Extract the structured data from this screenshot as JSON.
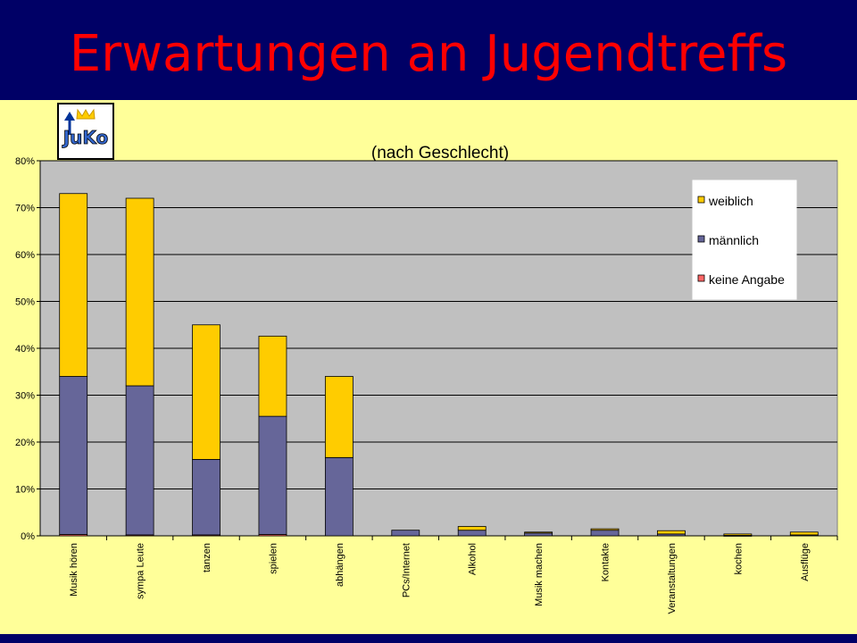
{
  "slide": {
    "title": "Erwartungen an Jugendtreffs"
  },
  "logo": {
    "text": "JuKo"
  },
  "colors": {
    "weiblich": "#ffcc00",
    "maennlich": "#666699",
    "keine_angabe": "#ff6666",
    "plot_bg": "#c0c0c0",
    "chart_bg": "#ffff99"
  },
  "chart_data": {
    "type": "bar",
    "stacked": true,
    "title": "(nach Geschlecht)",
    "xlabel": "",
    "ylabel": "",
    "ylim": [
      0,
      80
    ],
    "yticks": [
      "0%",
      "10%",
      "20%",
      "30%",
      "40%",
      "50%",
      "60%",
      "70%",
      "80%"
    ],
    "grid": true,
    "legend_position": "top-right",
    "categories": [
      "Musik hören",
      "sympa Leute",
      "tanzen",
      "spielen",
      "abhängen",
      "PCs/Internet",
      "Alkohol",
      "Musik machen",
      "Kontakte",
      "Veranstaltungen",
      "kochen",
      "Ausflüge"
    ],
    "series": [
      {
        "name": "keine Angabe",
        "values": [
          0.3,
          0.2,
          0.2,
          0.3,
          0.0,
          0.0,
          0.0,
          0.0,
          0.0,
          0.0,
          0.0,
          0.0
        ]
      },
      {
        "name": "männlich",
        "values": [
          33.7,
          31.8,
          16.1,
          25.2,
          16.7,
          1.2,
          1.2,
          0.6,
          1.2,
          0.4,
          0.1,
          0.2
        ]
      },
      {
        "name": "weiblich",
        "values": [
          39.0,
          40.0,
          28.7,
          17.1,
          17.3,
          0.0,
          0.8,
          0.2,
          0.3,
          0.7,
          0.3,
          0.6
        ]
      }
    ]
  }
}
